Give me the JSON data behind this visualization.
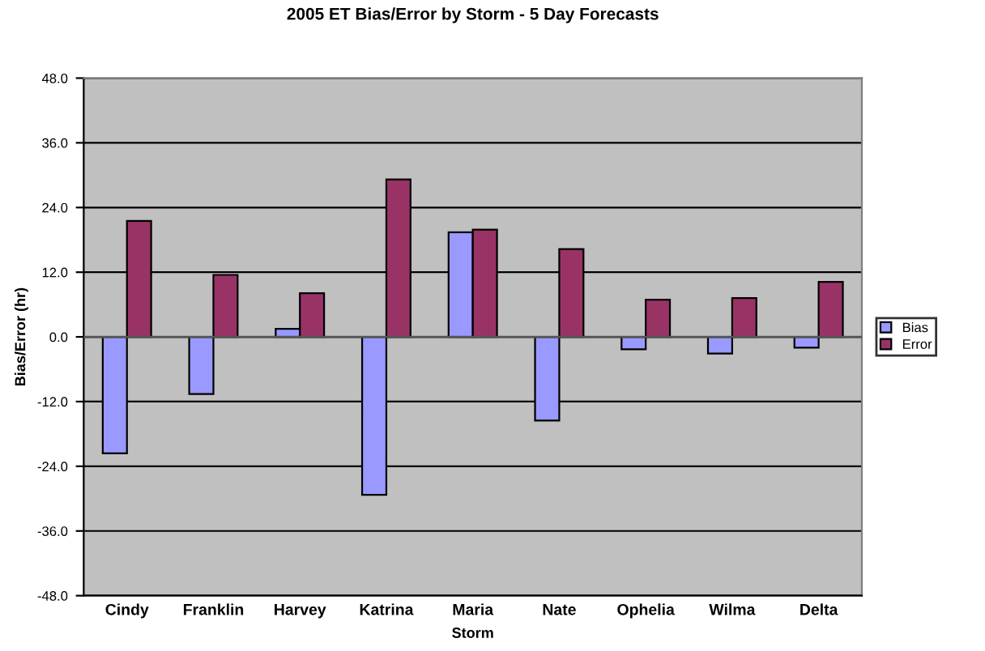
{
  "chart_data": {
    "type": "bar",
    "title": "2005 ET Bias/Error by Storm - 5 Day Forecasts",
    "xlabel": "Storm",
    "ylabel": "Bias/Error (hr)",
    "categories": [
      "Cindy",
      "Franklin",
      "Harvey",
      "Katrina",
      "Maria",
      "Nate",
      "Ophelia",
      "Wilma",
      "Delta"
    ],
    "series": [
      {
        "name": "Bias",
        "color": "#9999ff",
        "values": [
          -21.6,
          -10.6,
          1.5,
          -29.3,
          19.4,
          -15.5,
          -2.3,
          -3.1,
          -2.0
        ]
      },
      {
        "name": "Error",
        "color": "#993366",
        "values": [
          21.5,
          11.5,
          8.1,
          29.2,
          19.9,
          16.3,
          6.9,
          7.2,
          10.2
        ]
      }
    ],
    "ylim": [
      -48,
      48
    ],
    "yticks": [
      {
        "value": -48,
        "label": "-48.0"
      },
      {
        "value": -36,
        "label": "-36.0"
      },
      {
        "value": -24,
        "label": "-24.0"
      },
      {
        "value": -12,
        "label": "-12.0"
      },
      {
        "value": 0,
        "label": "0.0"
      },
      {
        "value": 12,
        "label": "12.0"
      },
      {
        "value": 24,
        "label": "24.0"
      },
      {
        "value": 36,
        "label": "36.0"
      },
      {
        "value": 48,
        "label": "48.0"
      }
    ],
    "grid": "y",
    "legend": "right"
  }
}
